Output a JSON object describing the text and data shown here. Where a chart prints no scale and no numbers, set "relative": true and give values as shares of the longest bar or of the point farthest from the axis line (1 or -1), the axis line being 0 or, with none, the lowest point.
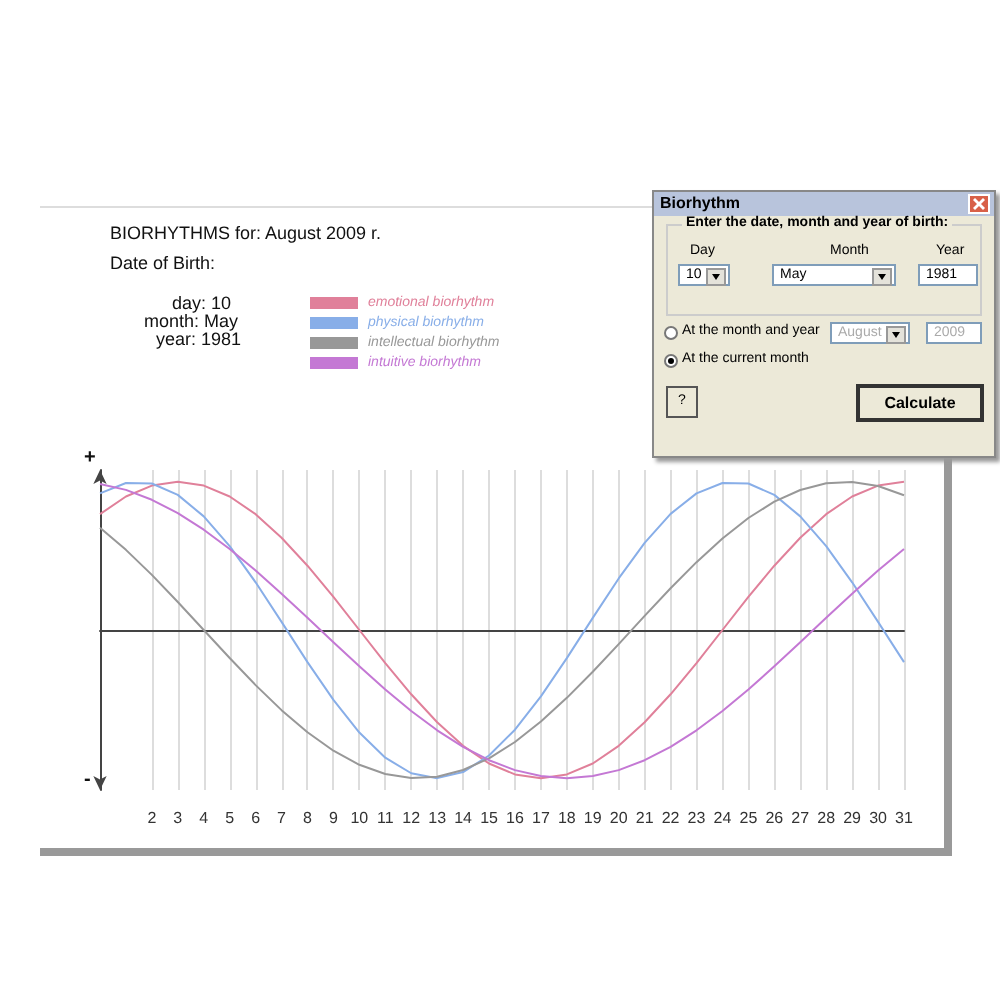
{
  "chart_data": {
    "type": "line",
    "title": "BIORHYTHMS for: August 2009 r.",
    "subtitle": "Date of Birth:",
    "annotations": [
      "day: 10",
      "month: May",
      "year: 1981",
      "+",
      "-",
      "Biorhythm",
      "Enter the date, month and year of birth:",
      "Day",
      "Month",
      "Year",
      "10",
      "May",
      "1981",
      "At the month and year",
      "August",
      "2009",
      "At the current month",
      "?",
      "Calculate"
    ],
    "relative": true,
    "x": [
      0,
      1,
      2,
      3,
      4,
      5,
      6,
      7,
      8,
      9,
      10,
      11,
      12,
      13,
      14,
      15,
      16,
      17,
      18,
      19,
      20,
      21,
      22,
      23,
      24,
      25,
      26,
      27,
      28,
      29,
      30,
      31
    ],
    "xlim": [
      0,
      31
    ],
    "xticks": [
      2,
      3,
      4,
      5,
      6,
      7,
      8,
      9,
      10,
      11,
      12,
      13,
      14,
      15,
      16,
      17,
      18,
      19,
      20,
      21,
      22,
      23,
      24,
      25,
      26,
      27,
      28,
      29,
      30,
      31
    ],
    "grid": "x",
    "legend": "top",
    "marker": "none",
    "line_style": "solid",
    "series": [
      {
        "name": "emotional biorhythm",
        "color": "#e0809a",
        "values": [
          0.782,
          0.901,
          0.975,
          1,
          0.975,
          0.901,
          0.782,
          0.623,
          0.434,
          0.223,
          0,
          -0.223,
          -0.434,
          -0.623,
          -0.782,
          -0.901,
          -0.975,
          -1,
          -0.975,
          -0.901,
          -0.782,
          -0.623,
          -0.434,
          -0.223,
          0,
          0.223,
          0.434,
          0.623,
          0.782,
          0.901,
          0.975,
          1
        ]
      },
      {
        "name": "physical biorhythm",
        "color": "#88aee8",
        "values": [
          0.922,
          0.992,
          0.989,
          0.912,
          0.767,
          0.566,
          0.322,
          0.055,
          -0.217,
          -0.472,
          -0.692,
          -0.862,
          -0.967,
          -1,
          -0.959,
          -0.847,
          -0.673,
          -0.448,
          -0.19,
          0.082,
          0.348,
          0.588,
          0.784,
          0.922,
          0.992,
          0.989,
          0.912,
          0.767,
          0.566,
          0.322,
          0.055,
          -0.217
        ]
      },
      {
        "name": "intellectual biorhythm",
        "color": "#989898",
        "values": [
          0.69,
          0.541,
          0.372,
          0.189,
          0,
          -0.189,
          -0.372,
          -0.541,
          -0.69,
          -0.815,
          -0.91,
          -0.972,
          -0.999,
          -0.99,
          -0.945,
          -0.866,
          -0.756,
          -0.618,
          -0.458,
          -0.282,
          -0.095,
          0.095,
          0.282,
          0.458,
          0.618,
          0.756,
          0.866,
          0.945,
          0.99,
          0.999,
          0.972,
          0.91
        ]
      },
      {
        "name": "intuitive biorhythm",
        "color": "#c478d4",
        "values": [
          0.986,
          0.946,
          0.879,
          0.789,
          0.677,
          0.547,
          0.402,
          0.245,
          0.083,
          -0.083,
          -0.245,
          -0.402,
          -0.547,
          -0.677,
          -0.789,
          -0.879,
          -0.946,
          -0.986,
          -1,
          -0.986,
          -0.946,
          -0.879,
          -0.789,
          -0.677,
          -0.547,
          -0.402,
          -0.245,
          -0.083,
          0.083,
          0.245,
          0.402,
          0.547
        ]
      }
    ]
  }
}
